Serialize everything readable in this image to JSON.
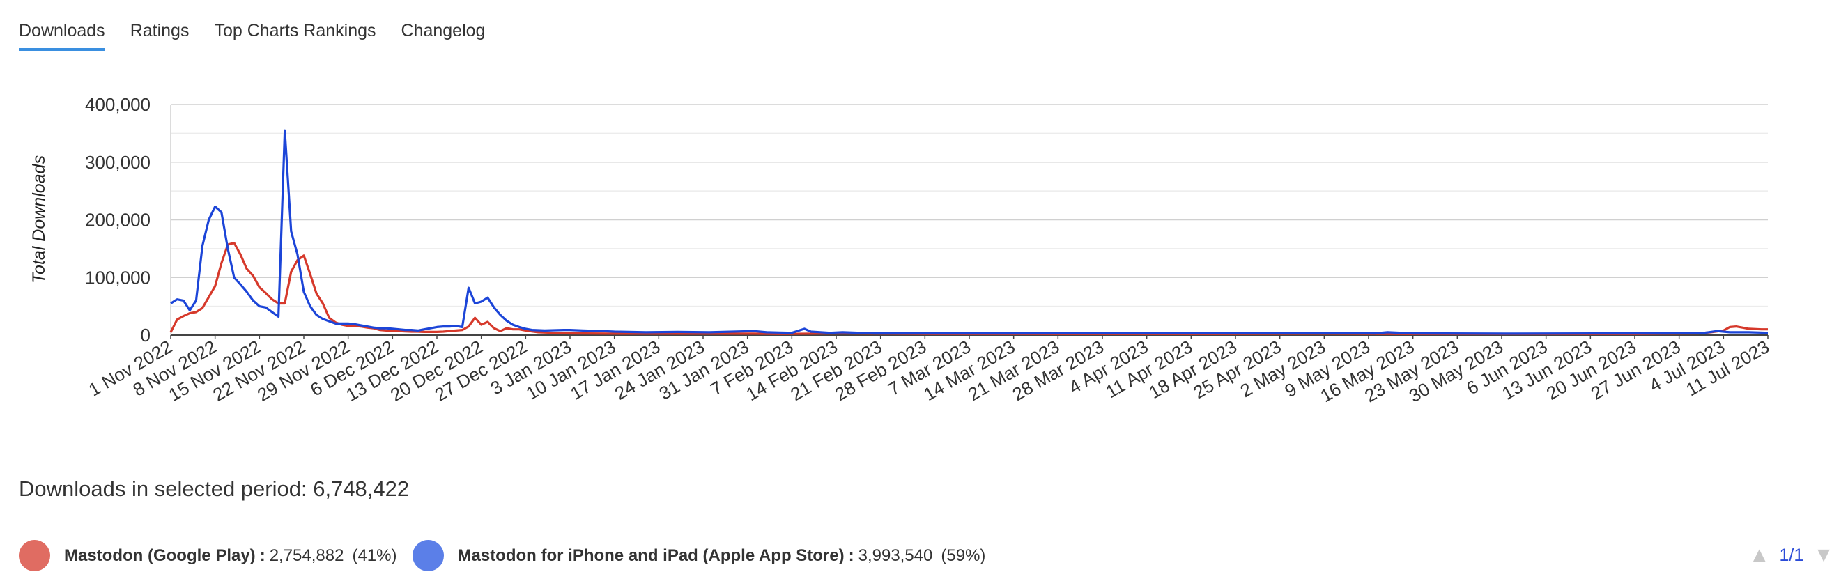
{
  "tabs": [
    {
      "label": "Downloads",
      "active": true
    },
    {
      "label": "Ratings",
      "active": false
    },
    {
      "label": "Top Charts Rankings",
      "active": false
    },
    {
      "label": "Changelog",
      "active": false
    }
  ],
  "summary": {
    "label": "Downloads in selected period:",
    "value": "6,748,422"
  },
  "legend": [
    {
      "name": "Mastodon (Google Play)",
      "value": "2,754,882",
      "pct": "(41%)",
      "color": "#e06c62"
    },
    {
      "name": "Mastodon for iPhone and iPad (Apple App Store)",
      "value": "3,993,540",
      "pct": "(59%)",
      "color": "#5b7fe8"
    }
  ],
  "pager": {
    "label": "1/1"
  },
  "chart_data": {
    "type": "line",
    "ylabel": "Total Downloads",
    "ylim": [
      0,
      400000
    ],
    "yticks": [
      0,
      100000,
      200000,
      300000,
      400000
    ],
    "ytick_labels": [
      "0",
      "100,000",
      "200,000",
      "300,000",
      "400,000"
    ],
    "grid": true,
    "x_start": "2022-11-01",
    "x_end": "2023-07-11",
    "xtick_labels": [
      "1 Nov 2022",
      "8 Nov 2022",
      "15 Nov 2022",
      "22 Nov 2022",
      "29 Nov 2022",
      "6 Dec 2022",
      "13 Dec 2022",
      "20 Dec 2022",
      "27 Dec 2022",
      "3 Jan 2023",
      "10 Jan 2023",
      "17 Jan 2023",
      "24 Jan 2023",
      "31 Jan 2023",
      "7 Feb 2023",
      "14 Feb 2023",
      "21 Feb 2023",
      "28 Feb 2023",
      "7 Mar 2023",
      "14 Mar 2023",
      "21 Mar 2023",
      "28 Mar 2023",
      "4 Apr 2023",
      "11 Apr 2023",
      "18 Apr 2023",
      "25 Apr 2023",
      "2 May 2023",
      "9 May 2023",
      "16 May 2023",
      "23 May 2023",
      "30 May 2023",
      "6 Jun 2023",
      "13 Jun 2023",
      "20 Jun 2023",
      "27 Jun 2023",
      "4 Jul 2023",
      "11 Jul 2023"
    ],
    "series": [
      {
        "name": "Mastodon (Google Play)",
        "color": "#d6392b",
        "points": [
          [
            "2022-11-01",
            5000
          ],
          [
            "2022-11-02",
            27000
          ],
          [
            "2022-11-03",
            33000
          ],
          [
            "2022-11-04",
            38000
          ],
          [
            "2022-11-05",
            40000
          ],
          [
            "2022-11-06",
            47000
          ],
          [
            "2022-11-07",
            66000
          ],
          [
            "2022-11-08",
            85000
          ],
          [
            "2022-11-09",
            125000
          ],
          [
            "2022-11-10",
            157000
          ],
          [
            "2022-11-11",
            160000
          ],
          [
            "2022-11-12",
            140000
          ],
          [
            "2022-11-13",
            115000
          ],
          [
            "2022-11-14",
            103000
          ],
          [
            "2022-11-15",
            83000
          ],
          [
            "2022-11-16",
            73000
          ],
          [
            "2022-11-17",
            62000
          ],
          [
            "2022-11-18",
            55000
          ],
          [
            "2022-11-19",
            55000
          ],
          [
            "2022-11-20",
            110000
          ],
          [
            "2022-11-21",
            130000
          ],
          [
            "2022-11-22",
            138000
          ],
          [
            "2022-11-23",
            106000
          ],
          [
            "2022-11-24",
            72000
          ],
          [
            "2022-11-25",
            55000
          ],
          [
            "2022-11-26",
            30000
          ],
          [
            "2022-11-27",
            22000
          ],
          [
            "2022-11-28",
            18000
          ],
          [
            "2022-11-29",
            16000
          ],
          [
            "2022-11-30",
            16000
          ],
          [
            "2022-12-01",
            15000
          ],
          [
            "2022-12-02",
            13000
          ],
          [
            "2022-12-03",
            12000
          ],
          [
            "2022-12-04",
            9000
          ],
          [
            "2022-12-05",
            8000
          ],
          [
            "2022-12-06",
            8000
          ],
          [
            "2022-12-07",
            7000
          ],
          [
            "2022-12-08",
            6500
          ],
          [
            "2022-12-09",
            6000
          ],
          [
            "2022-12-10",
            6000
          ],
          [
            "2022-12-11",
            5500
          ],
          [
            "2022-12-12",
            5500
          ],
          [
            "2022-12-13",
            5500
          ],
          [
            "2022-12-14",
            6000
          ],
          [
            "2022-12-15",
            7000
          ],
          [
            "2022-12-16",
            8000
          ],
          [
            "2022-12-17",
            9000
          ],
          [
            "2022-12-18",
            15000
          ],
          [
            "2022-12-19",
            30000
          ],
          [
            "2022-12-20",
            18000
          ],
          [
            "2022-12-21",
            23000
          ],
          [
            "2022-12-22",
            12000
          ],
          [
            "2022-12-23",
            7000
          ],
          [
            "2022-12-24",
            12000
          ],
          [
            "2022-12-25",
            10000
          ],
          [
            "2022-12-26",
            10000
          ],
          [
            "2022-12-27",
            8000
          ],
          [
            "2022-12-29",
            5000
          ],
          [
            "2023-01-03",
            3000
          ],
          [
            "2023-01-10",
            2500
          ],
          [
            "2023-01-20",
            2500
          ],
          [
            "2023-02-01",
            2500
          ],
          [
            "2023-02-05",
            2000
          ],
          [
            "2023-02-15",
            3000
          ],
          [
            "2023-03-01",
            2000
          ],
          [
            "2023-03-15",
            2000
          ],
          [
            "2023-04-01",
            2000
          ],
          [
            "2023-04-15",
            2000
          ],
          [
            "2023-05-01",
            2500
          ],
          [
            "2023-05-15",
            2000
          ],
          [
            "2023-06-01",
            2000
          ],
          [
            "2023-06-20",
            2000
          ],
          [
            "2023-06-30",
            3000
          ],
          [
            "2023-07-02",
            5000
          ],
          [
            "2023-07-04",
            8000
          ],
          [
            "2023-07-05",
            14000
          ],
          [
            "2023-07-06",
            15000
          ],
          [
            "2023-07-07",
            13000
          ],
          [
            "2023-07-08",
            11000
          ],
          [
            "2023-07-10",
            10000
          ],
          [
            "2023-07-11",
            10000
          ]
        ]
      },
      {
        "name": "Mastodon for iPhone and iPad (Apple App Store)",
        "color": "#1c45d8",
        "points": [
          [
            "2022-11-01",
            55000
          ],
          [
            "2022-11-02",
            62000
          ],
          [
            "2022-11-03",
            60000
          ],
          [
            "2022-11-04",
            43000
          ],
          [
            "2022-11-05",
            60000
          ],
          [
            "2022-11-06",
            155000
          ],
          [
            "2022-11-07",
            200000
          ],
          [
            "2022-11-08",
            223000
          ],
          [
            "2022-11-09",
            213000
          ],
          [
            "2022-11-10",
            150000
          ],
          [
            "2022-11-11",
            100000
          ],
          [
            "2022-11-12",
            88000
          ],
          [
            "2022-11-13",
            75000
          ],
          [
            "2022-11-14",
            60000
          ],
          [
            "2022-11-15",
            50000
          ],
          [
            "2022-11-16",
            48000
          ],
          [
            "2022-11-17",
            40000
          ],
          [
            "2022-11-18",
            32000
          ],
          [
            "2022-11-19",
            355000
          ],
          [
            "2022-11-20",
            180000
          ],
          [
            "2022-11-21",
            140000
          ],
          [
            "2022-11-22",
            75000
          ],
          [
            "2022-11-23",
            50000
          ],
          [
            "2022-11-24",
            35000
          ],
          [
            "2022-11-25",
            28000
          ],
          [
            "2022-11-26",
            24000
          ],
          [
            "2022-11-27",
            20000
          ],
          [
            "2022-11-28",
            20000
          ],
          [
            "2022-11-29",
            20000
          ],
          [
            "2022-11-30",
            19000
          ],
          [
            "2022-12-01",
            17000
          ],
          [
            "2022-12-02",
            15000
          ],
          [
            "2022-12-03",
            13000
          ],
          [
            "2022-12-04",
            12000
          ],
          [
            "2022-12-05",
            12000
          ],
          [
            "2022-12-06",
            11000
          ],
          [
            "2022-12-07",
            10000
          ],
          [
            "2022-12-08",
            9000
          ],
          [
            "2022-12-09",
            9000
          ],
          [
            "2022-12-10",
            8000
          ],
          [
            "2022-12-11",
            10000
          ],
          [
            "2022-12-12",
            12000
          ],
          [
            "2022-12-13",
            14000
          ],
          [
            "2022-12-14",
            15000
          ],
          [
            "2022-12-15",
            15000
          ],
          [
            "2022-12-16",
            16000
          ],
          [
            "2022-12-17",
            14000
          ],
          [
            "2022-12-18",
            82000
          ],
          [
            "2022-12-19",
            55000
          ],
          [
            "2022-12-20",
            58000
          ],
          [
            "2022-12-21",
            65000
          ],
          [
            "2022-12-22",
            48000
          ],
          [
            "2022-12-23",
            35000
          ],
          [
            "2022-12-24",
            25000
          ],
          [
            "2022-12-25",
            18000
          ],
          [
            "2022-12-26",
            14000
          ],
          [
            "2022-12-27",
            11000
          ],
          [
            "2022-12-28",
            9000
          ],
          [
            "2022-12-30",
            8000
          ],
          [
            "2023-01-02",
            9000
          ],
          [
            "2023-01-03",
            9000
          ],
          [
            "2023-01-05",
            8000
          ],
          [
            "2023-01-08",
            7000
          ],
          [
            "2023-01-10",
            6000
          ],
          [
            "2023-01-15",
            5000
          ],
          [
            "2023-01-20",
            5500
          ],
          [
            "2023-01-25",
            5000
          ],
          [
            "2023-02-01",
            7000
          ],
          [
            "2023-02-03",
            5000
          ],
          [
            "2023-02-05",
            4500
          ],
          [
            "2023-02-07",
            4000
          ],
          [
            "2023-02-09",
            11000
          ],
          [
            "2023-02-10",
            6000
          ],
          [
            "2023-02-13",
            4000
          ],
          [
            "2023-02-15",
            5000
          ],
          [
            "2023-02-20",
            3000
          ],
          [
            "2023-03-01",
            3000
          ],
          [
            "2023-03-15",
            3000
          ],
          [
            "2023-04-01",
            3500
          ],
          [
            "2023-04-15",
            4000
          ],
          [
            "2023-05-01",
            4000
          ],
          [
            "2023-05-10",
            3000
          ],
          [
            "2023-05-12",
            5000
          ],
          [
            "2023-05-16",
            3000
          ],
          [
            "2023-06-01",
            2500
          ],
          [
            "2023-06-15",
            3000
          ],
          [
            "2023-06-25",
            3000
          ],
          [
            "2023-07-01",
            4000
          ],
          [
            "2023-07-03",
            7000
          ],
          [
            "2023-07-05",
            5000
          ],
          [
            "2023-07-08",
            5000
          ],
          [
            "2023-07-11",
            4000
          ]
        ]
      }
    ]
  }
}
